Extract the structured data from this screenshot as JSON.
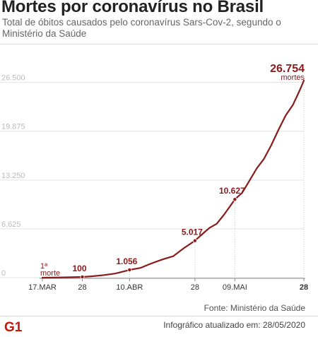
{
  "title": "Mortes por coronavírus no Brasil",
  "subtitle": "Total de óbitos causados pelo coronavírus Sars-Cov-2, segundo o Ministério da Saúde",
  "source": "Fonte: Ministério da Saúde",
  "brand": "G1",
  "updated": "Infográfico atualizado em: 28/05/2020",
  "colors": {
    "line": "#8b1a1a",
    "grid": "#e3e3e3",
    "axis_text": "#bcbcbc",
    "brand": "#c4170c"
  },
  "chart_data": {
    "type": "line",
    "title": "Mortes por coronavírus no Brasil",
    "xlabel": "",
    "ylabel": "",
    "ylim": [
      0,
      26754
    ],
    "y_ticks": [
      {
        "value": 0,
        "label": "0"
      },
      {
        "value": 6625,
        "label": "6.625"
      },
      {
        "value": 13250,
        "label": "13.250"
      },
      {
        "value": 19875,
        "label": "19.875"
      },
      {
        "value": 26500,
        "label": "26.500"
      }
    ],
    "x_ticks": [
      {
        "date": "2020-03-17",
        "label": "17.MAR"
      },
      {
        "date": "2020-03-28",
        "label": "28"
      },
      {
        "date": "2020-04-10",
        "label": "10.ABR"
      },
      {
        "date": "2020-04-28",
        "label": "28"
      },
      {
        "date": "2020-05-09",
        "label": "09.MAI"
      },
      {
        "date": "2020-05-28",
        "label": "28"
      }
    ],
    "series": [
      {
        "points": [
          {
            "x": "2020-03-17",
            "y": 1
          },
          {
            "x": "2020-03-20",
            "y": 11
          },
          {
            "x": "2020-03-24",
            "y": 46
          },
          {
            "x": "2020-03-28",
            "y": 100
          },
          {
            "x": "2020-03-31",
            "y": 201
          },
          {
            "x": "2020-04-03",
            "y": 359
          },
          {
            "x": "2020-04-06",
            "y": 553
          },
          {
            "x": "2020-04-08",
            "y": 800
          },
          {
            "x": "2020-04-10",
            "y": 1056
          },
          {
            "x": "2020-04-13",
            "y": 1328
          },
          {
            "x": "2020-04-16",
            "y": 1924
          },
          {
            "x": "2020-04-19",
            "y": 2462
          },
          {
            "x": "2020-04-22",
            "y": 2906
          },
          {
            "x": "2020-04-25",
            "y": 4016
          },
          {
            "x": "2020-04-28",
            "y": 5017
          },
          {
            "x": "2020-04-30",
            "y": 5901
          },
          {
            "x": "2020-05-02",
            "y": 6750
          },
          {
            "x": "2020-05-04",
            "y": 7321
          },
          {
            "x": "2020-05-06",
            "y": 8536
          },
          {
            "x": "2020-05-09",
            "y": 10627
          },
          {
            "x": "2020-05-11",
            "y": 11519
          },
          {
            "x": "2020-05-13",
            "y": 13149
          },
          {
            "x": "2020-05-15",
            "y": 14817
          },
          {
            "x": "2020-05-17",
            "y": 16118
          },
          {
            "x": "2020-05-19",
            "y": 17971
          },
          {
            "x": "2020-05-21",
            "y": 20047
          },
          {
            "x": "2020-05-23",
            "y": 22013
          },
          {
            "x": "2020-05-25",
            "y": 23473
          },
          {
            "x": "2020-05-26",
            "y": 24512
          },
          {
            "x": "2020-05-27",
            "y": 25598
          },
          {
            "x": "2020-05-28",
            "y": 26754
          }
        ]
      }
    ],
    "annotations": [
      {
        "x": "2020-03-17",
        "y": 1,
        "text": "1ª",
        "text2": "morte"
      },
      {
        "x": "2020-03-28",
        "y": 100,
        "text": "100"
      },
      {
        "x": "2020-04-10",
        "y": 1056,
        "text": "1.056"
      },
      {
        "x": "2020-04-28",
        "y": 5017,
        "text": "5.017"
      },
      {
        "x": "2020-05-09",
        "y": 10627,
        "text": "10.627"
      },
      {
        "x": "2020-05-28",
        "y": 26754,
        "text": "26.754",
        "text2": "mortes"
      }
    ],
    "grid": true,
    "legend": "none"
  }
}
